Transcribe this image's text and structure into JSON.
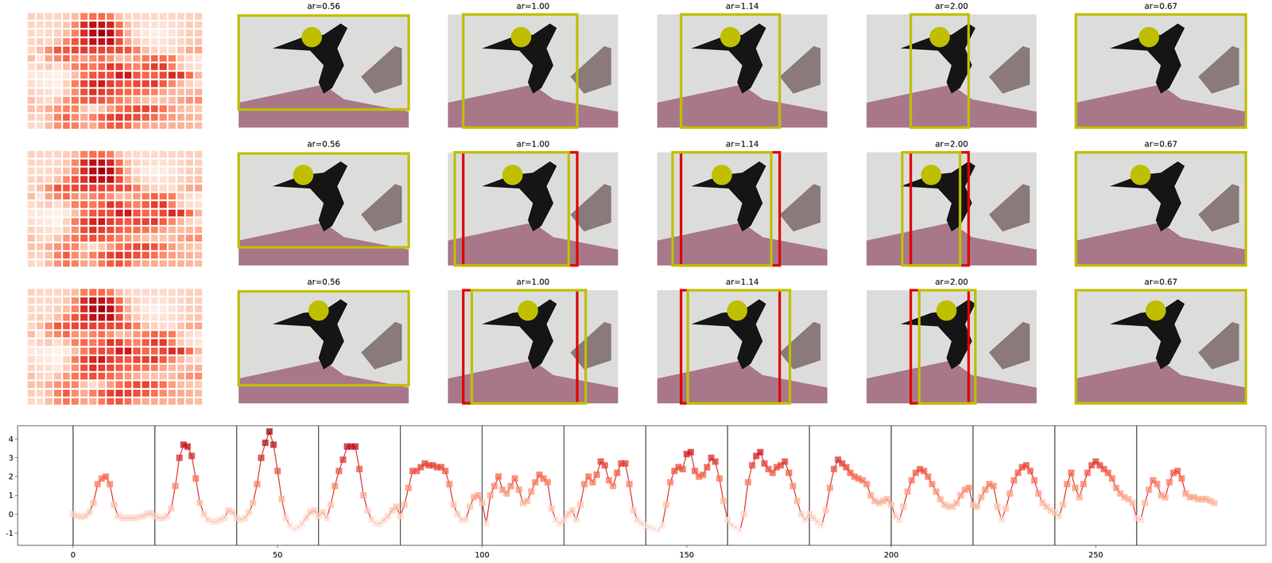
{
  "chart_data": {
    "type": "line",
    "x": [
      0,
      1,
      2,
      3,
      4,
      5,
      6,
      7,
      8,
      9,
      10,
      11,
      12,
      13,
      14,
      15,
      16,
      17,
      18,
      19,
      20,
      21,
      22,
      23,
      24,
      25,
      26,
      27,
      28,
      29,
      30,
      31,
      32,
      33,
      34,
      35,
      36,
      37,
      38,
      39,
      40,
      41,
      42,
      43,
      44,
      45,
      46,
      47,
      48,
      49,
      50,
      51,
      52,
      53,
      54,
      55,
      56,
      57,
      58,
      59,
      60,
      61,
      62,
      63,
      64,
      65,
      66,
      67,
      68,
      69,
      70,
      71,
      72,
      73,
      74,
      75,
      76,
      77,
      78,
      79,
      80,
      81,
      82,
      83,
      84,
      85,
      86,
      87,
      88,
      89,
      90,
      91,
      92,
      93,
      94,
      95,
      96,
      97,
      98,
      99,
      100,
      101,
      102,
      103,
      104,
      105,
      106,
      107,
      108,
      109,
      110,
      111,
      112,
      113,
      114,
      115,
      116,
      117,
      118,
      119,
      120,
      121,
      122,
      123,
      124,
      125,
      126,
      127,
      128,
      129,
      130,
      131,
      132,
      133,
      134,
      135,
      136,
      137,
      138,
      139,
      140,
      141,
      142,
      143,
      144,
      145,
      146,
      147,
      148,
      149,
      150,
      151,
      152,
      153,
      154,
      155,
      156,
      157,
      158,
      159,
      160,
      161,
      162,
      163,
      164,
      165,
      166,
      167,
      168,
      169,
      170,
      171,
      172,
      173,
      174,
      175,
      176,
      177,
      178,
      179,
      180,
      181,
      182,
      183,
      184,
      185,
      186,
      187,
      188,
      189,
      190,
      191,
      192,
      193,
      194,
      195,
      196,
      197,
      198,
      199,
      200,
      201,
      202,
      203,
      204,
      205,
      206,
      207,
      208,
      209,
      210,
      211,
      212,
      213,
      214,
      215,
      216,
      217,
      218,
      219,
      220,
      221,
      222,
      223,
      224,
      225,
      226,
      227,
      228,
      229,
      230,
      231,
      232,
      233,
      234,
      235,
      236,
      237,
      238,
      239,
      240,
      241,
      242,
      243,
      244,
      245,
      246,
      247,
      248,
      249,
      250,
      251,
      252,
      253,
      254,
      255,
      256,
      257,
      258,
      259,
      260,
      261,
      262,
      263,
      264,
      265,
      266,
      267,
      268,
      269,
      270,
      271,
      272,
      273,
      274,
      275,
      276,
      277,
      278,
      279
    ],
    "values": [
      0.0,
      -0.1,
      -0.15,
      -0.1,
      0.1,
      0.6,
      1.6,
      1.9,
      2.0,
      1.6,
      0.5,
      -0.1,
      -0.2,
      -0.2,
      -0.2,
      -0.2,
      -0.15,
      -0.1,
      0.0,
      0.05,
      -0.1,
      -0.2,
      -0.2,
      -0.1,
      0.3,
      1.5,
      3.0,
      3.7,
      3.6,
      3.1,
      1.9,
      0.6,
      0.0,
      -0.3,
      -0.4,
      -0.4,
      -0.3,
      -0.2,
      0.2,
      0.1,
      -0.2,
      -0.3,
      -0.2,
      0.1,
      0.6,
      1.6,
      3.0,
      3.8,
      4.4,
      3.7,
      2.3,
      0.8,
      -0.2,
      -0.6,
      -0.8,
      -0.7,
      -0.5,
      -0.2,
      0.1,
      0.2,
      -0.1,
      0.1,
      -0.2,
      0.5,
      1.5,
      2.3,
      2.9,
      3.6,
      3.6,
      3.6,
      2.4,
      1.0,
      0.2,
      -0.3,
      -0.5,
      -0.5,
      -0.3,
      -0.1,
      0.2,
      0.4,
      -0.1,
      0.5,
      1.4,
      2.3,
      2.3,
      2.5,
      2.7,
      2.6,
      2.6,
      2.5,
      2.5,
      2.3,
      1.6,
      0.5,
      0.0,
      -0.3,
      -0.3,
      0.4,
      0.9,
      1.0,
      0.6,
      -0.5,
      1.0,
      1.5,
      2.0,
      1.3,
      1.1,
      1.5,
      1.9,
      1.3,
      0.6,
      0.7,
      1.2,
      1.7,
      2.1,
      1.9,
      1.7,
      0.3,
      -0.3,
      -0.5,
      -0.3,
      0.0,
      0.2,
      -0.3,
      0.5,
      1.6,
      2.0,
      1.7,
      2.1,
      2.8,
      2.6,
      1.8,
      1.5,
      2.2,
      2.7,
      2.7,
      1.6,
      0.2,
      -0.3,
      -0.5,
      -0.6,
      -0.7,
      -0.8,
      -0.9,
      -0.6,
      0.5,
      1.7,
      2.3,
      2.5,
      2.4,
      3.2,
      3.3,
      2.3,
      2.0,
      2.1,
      2.5,
      3.0,
      2.8,
      1.9,
      0.7,
      -0.3,
      -0.6,
      -0.7,
      -0.9,
      0.0,
      1.7,
      2.6,
      3.1,
      3.3,
      2.7,
      2.4,
      2.2,
      2.5,
      2.6,
      2.8,
      2.2,
      1.5,
      0.7,
      0.0,
      -0.3,
      0.0,
      -0.2,
      -0.4,
      -0.6,
      0.2,
      1.4,
      2.4,
      2.9,
      2.7,
      2.5,
      2.2,
      2.0,
      1.9,
      1.8,
      1.6,
      1.0,
      0.7,
      0.6,
      0.7,
      0.8,
      0.5,
      -0.1,
      -0.3,
      0.4,
      1.2,
      1.8,
      2.2,
      2.4,
      2.3,
      2.0,
      1.6,
      1.2,
      0.8,
      0.5,
      0.4,
      0.4,
      0.6,
      1.0,
      1.3,
      1.4,
      0.5,
      0.4,
      0.9,
      1.3,
      1.6,
      1.5,
      0.4,
      -0.3,
      0.3,
      1.1,
      1.8,
      2.2,
      2.5,
      2.6,
      2.3,
      1.8,
      1.1,
      0.6,
      0.4,
      0.2,
      0.1,
      -0.1,
      0.5,
      1.6,
      2.2,
      1.4,
      0.9,
      1.6,
      2.2,
      2.6,
      2.8,
      2.6,
      2.4,
      2.2,
      1.9,
      1.4,
      1.1,
      0.9,
      0.8,
      0.6,
      -0.2,
      -0.3,
      0.6,
      1.3,
      1.8,
      1.6,
      1.0,
      0.9,
      1.7,
      2.2,
      2.3,
      1.9,
      1.1,
      0.9,
      0.9,
      0.8,
      0.8,
      0.8,
      0.7,
      0.6
    ],
    "xlim": [
      -13.5,
      291.5
    ],
    "ylim": [
      -1.65,
      4.7
    ],
    "xticks": [
      0,
      50,
      100,
      150,
      200,
      250
    ],
    "yticks": [
      -1,
      0,
      1,
      2,
      3,
      4
    ],
    "vlines": [
      0,
      20,
      40,
      60,
      80,
      100,
      120,
      140,
      160,
      180,
      200,
      220,
      240,
      260
    ],
    "color": "#d62728",
    "marker": "square",
    "color_range": [
      -1,
      4.4
    ],
    "heatmap_shape": [
      14,
      20
    ],
    "panel_rows": [
      {
        "panels": [
          {
            "title": "ar=0.56",
            "box": [
              0.0,
              0.01,
              1.0,
              0.84
            ],
            "point": [
              0.43,
              0.2
            ]
          },
          {
            "title": "ar=1.00",
            "box": [
              0.09,
              0.0,
              0.76,
              1.0
            ],
            "point": [
              0.43,
              0.2
            ]
          },
          {
            "title": "ar=1.14",
            "box": [
              0.14,
              0.0,
              0.72,
              1.0
            ],
            "point": [
              0.43,
              0.2
            ]
          },
          {
            "title": "ar=2.00",
            "box": [
              0.26,
              0.0,
              0.6,
              1.0
            ],
            "point": [
              0.43,
              0.2
            ]
          },
          {
            "title": "ar=0.67",
            "box": [
              0.0,
              0.0,
              1.0,
              1.0
            ],
            "point": [
              0.43,
              0.2
            ]
          }
        ]
      },
      {
        "panels": [
          {
            "title": "ar=0.56",
            "box": [
              0.0,
              0.01,
              1.0,
              0.84
            ],
            "point": [
              0.38,
              0.2
            ]
          },
          {
            "title": "ar=1.00",
            "box": [
              0.04,
              0.0,
              0.71,
              1.0
            ],
            "red": [
              0.09,
              0.0,
              0.76,
              1.0
            ],
            "point": [
              0.38,
              0.2
            ]
          },
          {
            "title": "ar=1.14",
            "box": [
              0.09,
              0.0,
              0.67,
              1.0
            ],
            "red": [
              0.14,
              0.0,
              0.72,
              1.0
            ],
            "point": [
              0.38,
              0.2
            ]
          },
          {
            "title": "ar=2.00",
            "box": [
              0.21,
              0.0,
              0.55,
              1.0
            ],
            "red": [
              0.26,
              0.0,
              0.6,
              1.0
            ],
            "point": [
              0.38,
              0.2
            ]
          },
          {
            "title": "ar=0.67",
            "box": [
              0.0,
              0.0,
              1.0,
              1.0
            ],
            "point": [
              0.38,
              0.2
            ]
          }
        ]
      },
      {
        "panels": [
          {
            "title": "ar=0.56",
            "box": [
              0.0,
              0.01,
              1.0,
              0.84
            ],
            "point": [
              0.47,
              0.18
            ]
          },
          {
            "title": "ar=1.00",
            "box": [
              0.14,
              0.0,
              0.81,
              1.0
            ],
            "red": [
              0.09,
              0.0,
              0.76,
              1.0
            ],
            "point": [
              0.47,
              0.18
            ]
          },
          {
            "title": "ar=1.14",
            "box": [
              0.18,
              0.0,
              0.78,
              1.0
            ],
            "red": [
              0.14,
              0.0,
              0.72,
              1.0
            ],
            "point": [
              0.47,
              0.18
            ]
          },
          {
            "title": "ar=2.00",
            "box": [
              0.31,
              0.0,
              0.64,
              1.0
            ],
            "red": [
              0.26,
              0.0,
              0.6,
              1.0
            ],
            "point": [
              0.47,
              0.18
            ]
          },
          {
            "title": "ar=0.67",
            "box": [
              0.0,
              0.0,
              1.0,
              1.0
            ],
            "point": [
              0.47,
              0.18
            ]
          }
        ]
      }
    ]
  }
}
